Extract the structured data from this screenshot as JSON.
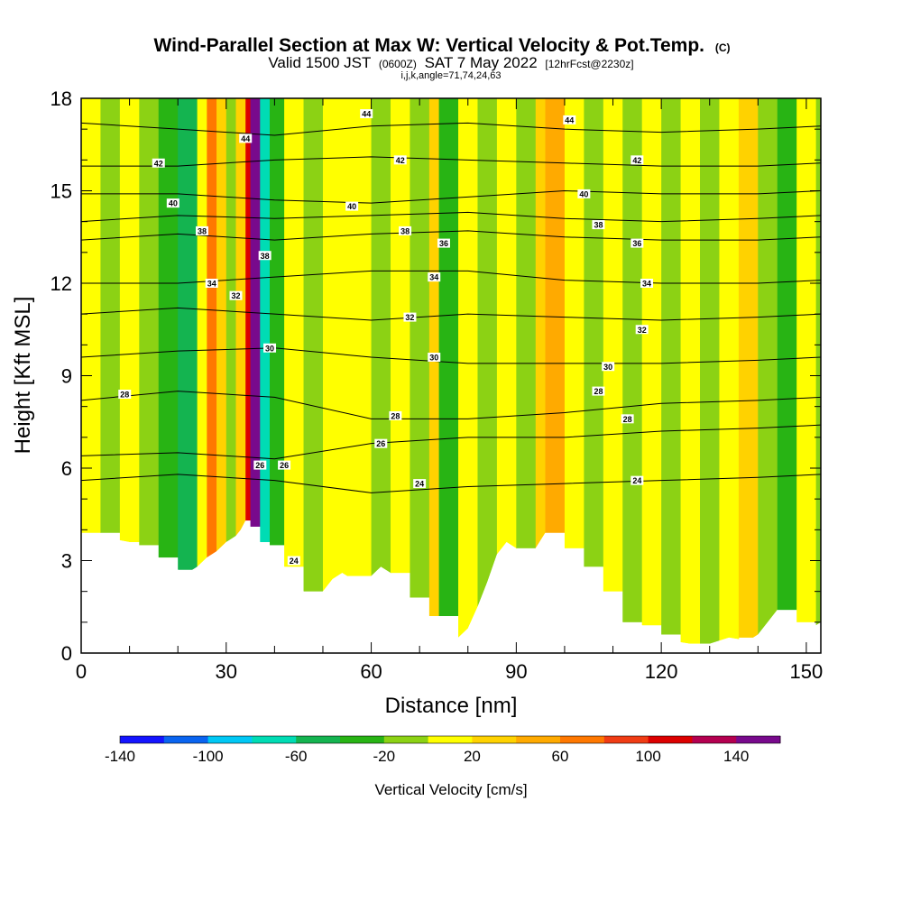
{
  "chart_data": {
    "type": "heatmap",
    "title": "Wind-Parallel Section at Max W: Vertical Velocity & Pot.Temp.",
    "title_mark": "(C)",
    "subtitle": {
      "valid_prefix": "Valid 1500 JST",
      "utc": "(0600Z)",
      "date": "SAT 7 May 2022",
      "forecast": "[12hrFcst@2230z]"
    },
    "info": "i,j,k,angle=71,74,24,63",
    "xlabel": "Distance [nm]",
    "ylabel": "Height [Kft MSL]",
    "xlim": [
      0,
      153
    ],
    "ylim": [
      0,
      18
    ],
    "x_ticks": [
      0,
      30,
      60,
      90,
      120,
      150
    ],
    "x_tick_labels": [
      "0",
      "30",
      "60",
      "90",
      "120",
      "150"
    ],
    "y_ticks": [
      0,
      3,
      6,
      9,
      12,
      15,
      18
    ],
    "y_tick_labels": [
      "0",
      "3",
      "6",
      "9",
      "12",
      "15",
      "18"
    ],
    "colorbar": {
      "label": "Vertical Velocity [cm/s]",
      "min": -140,
      "max": 160,
      "step": 20,
      "tick_values": [
        -140,
        -100,
        -60,
        -20,
        20,
        60,
        100,
        140
      ],
      "tick_labels": [
        "-140",
        "-100",
        "-60",
        "-20",
        "20",
        "60",
        "100",
        "140"
      ],
      "colors": [
        "#1414ff",
        "#0a64f0",
        "#00c8f5",
        "#00dcb4",
        "#14b450",
        "#28b414",
        "#8cd214",
        "#ffff00",
        "#ffd200",
        "#ffaa00",
        "#ff7800",
        "#f03c14",
        "#dc0000",
        "#b40050",
        "#780a8c"
      ]
    },
    "terrain_profile": {
      "x": [
        0,
        10,
        14,
        16,
        18,
        20,
        22,
        24,
        26,
        28,
        30,
        32,
        33,
        34,
        35,
        36,
        37,
        38,
        40,
        42,
        44,
        46,
        48,
        50,
        52,
        54,
        56,
        58,
        60,
        62,
        64,
        66,
        68,
        70,
        72,
        74,
        76,
        78,
        80,
        82,
        84,
        86,
        88,
        90,
        92,
        94,
        96,
        98,
        100,
        102,
        104,
        106,
        108,
        110,
        112,
        114,
        116,
        118,
        120,
        122,
        126,
        130,
        134,
        138,
        140,
        142,
        144,
        146,
        148,
        150,
        152,
        153
      ],
      "height": [
        3.9,
        3.6,
        3.3,
        3.1,
        2.9,
        2.7,
        2.6,
        2.8,
        3.1,
        3.3,
        3.6,
        3.8,
        4.0,
        4.3,
        4.1,
        3.8,
        3.6,
        3.5,
        3.2,
        2.8,
        2.4,
        2.0,
        1.8,
        2.0,
        2.4,
        2.6,
        2.4,
        2.2,
        2.5,
        2.8,
        2.6,
        2.2,
        1.8,
        1.4,
        1.2,
        1.2,
        1.0,
        0.5,
        0.8,
        1.5,
        2.3,
        3.2,
        3.6,
        3.4,
        3.0,
        3.4,
        3.9,
        3.7,
        3.4,
        3.1,
        2.8,
        2.5,
        2.0,
        1.5,
        1.0,
        0.9,
        0.9,
        0.8,
        0.6,
        0.4,
        0.3,
        0.3,
        0.5,
        0.4,
        0.6,
        1.0,
        1.4,
        1.2,
        1.0,
        0.8,
        0.9,
        1.0
      ]
    },
    "velocity_cells": [
      {
        "x": 0,
        "y0": 3.9,
        "y1": 18,
        "v": 10
      },
      {
        "x": 4,
        "y0": 3.9,
        "y1": 18,
        "v": -10
      },
      {
        "x": 8,
        "y0": 3.6,
        "y1": 18,
        "v": 10
      },
      {
        "x": 12,
        "y0": 3.5,
        "y1": 18,
        "v": -10
      },
      {
        "x": 16,
        "y0": 3.1,
        "y1": 18,
        "v": -30
      },
      {
        "x": 20,
        "y0": 2.7,
        "y1": 18,
        "v": -50
      },
      {
        "x": 24,
        "y0": 2.8,
        "y1": 18,
        "v": 10
      },
      {
        "x": 26,
        "y0": 3.1,
        "y1": 18,
        "v": 70
      },
      {
        "x": 28,
        "y0": 3.3,
        "y1": 18,
        "v": 30
      },
      {
        "x": 30,
        "y0": 3.6,
        "y1": 18,
        "v": -10
      },
      {
        "x": 32,
        "y0": 3.8,
        "y1": 18,
        "v": 30
      },
      {
        "x": 34,
        "y0": 4.3,
        "y1": 18,
        "v": 110
      },
      {
        "x": 35,
        "y0": 4.1,
        "y1": 18,
        "v": 150
      },
      {
        "x": 37,
        "y0": 3.6,
        "y1": 18,
        "v": -70
      },
      {
        "x": 39,
        "y0": 3.5,
        "y1": 18,
        "v": -30
      },
      {
        "x": 42,
        "y0": 2.8,
        "y1": 18,
        "v": 10
      },
      {
        "x": 46,
        "y0": 2.0,
        "y1": 18,
        "v": -10
      },
      {
        "x": 50,
        "y0": 2.0,
        "y1": 18,
        "v": 10
      },
      {
        "x": 55,
        "y0": 2.5,
        "y1": 18,
        "v": 10
      },
      {
        "x": 60,
        "y0": 2.5,
        "y1": 18,
        "v": -10
      },
      {
        "x": 64,
        "y0": 2.6,
        "y1": 18,
        "v": 10
      },
      {
        "x": 68,
        "y0": 1.8,
        "y1": 18,
        "v": -10
      },
      {
        "x": 72,
        "y0": 1.2,
        "y1": 18,
        "v": 30
      },
      {
        "x": 74,
        "y0": 1.2,
        "y1": 18,
        "v": -30
      },
      {
        "x": 78,
        "y0": 0.5,
        "y1": 18,
        "v": 10
      },
      {
        "x": 82,
        "y0": 1.5,
        "y1": 18,
        "v": -10
      },
      {
        "x": 86,
        "y0": 3.2,
        "y1": 18,
        "v": 10
      },
      {
        "x": 90,
        "y0": 3.4,
        "y1": 18,
        "v": -10
      },
      {
        "x": 94,
        "y0": 3.4,
        "y1": 18,
        "v": 30
      },
      {
        "x": 96,
        "y0": 3.9,
        "y1": 18,
        "v": 50
      },
      {
        "x": 100,
        "y0": 3.4,
        "y1": 18,
        "v": 10
      },
      {
        "x": 104,
        "y0": 2.8,
        "y1": 18,
        "v": -10
      },
      {
        "x": 108,
        "y0": 2.0,
        "y1": 18,
        "v": 10
      },
      {
        "x": 112,
        "y0": 1.0,
        "y1": 18,
        "v": -10
      },
      {
        "x": 116,
        "y0": 0.9,
        "y1": 18,
        "v": 10
      },
      {
        "x": 120,
        "y0": 0.6,
        "y1": 18,
        "v": -10
      },
      {
        "x": 124,
        "y0": 0.3,
        "y1": 18,
        "v": 10
      },
      {
        "x": 128,
        "y0": 0.3,
        "y1": 18,
        "v": -10
      },
      {
        "x": 132,
        "y0": 0.3,
        "y1": 18,
        "v": 10
      },
      {
        "x": 136,
        "y0": 0.5,
        "y1": 18,
        "v": 30
      },
      {
        "x": 140,
        "y0": 0.6,
        "y1": 18,
        "v": -10
      },
      {
        "x": 144,
        "y0": 1.4,
        "y1": 18,
        "v": -30
      },
      {
        "x": 148,
        "y0": 1.0,
        "y1": 18,
        "v": 10
      },
      {
        "x": 152,
        "y0": 0.9,
        "y1": 18,
        "v": -10
      }
    ],
    "theta_contours": [
      {
        "label": "24",
        "x": [
          0,
          20,
          40,
          60,
          80,
          100,
          120,
          140,
          153
        ],
        "y": [
          5.6,
          5.8,
          5.6,
          5.2,
          5.4,
          5.5,
          5.6,
          5.7,
          5.8
        ]
      },
      {
        "label": "26",
        "x": [
          0,
          20,
          40,
          60,
          80,
          100,
          120,
          140,
          153
        ],
        "y": [
          6.4,
          6.5,
          6.3,
          6.8,
          7.0,
          7.0,
          7.2,
          7.3,
          7.4
        ]
      },
      {
        "label": "28",
        "x": [
          0,
          20,
          40,
          60,
          80,
          100,
          120,
          140,
          153
        ],
        "y": [
          8.2,
          8.5,
          8.3,
          7.6,
          7.6,
          7.8,
          8.1,
          8.2,
          8.3
        ]
      },
      {
        "label": "30",
        "x": [
          0,
          20,
          40,
          60,
          80,
          100,
          120,
          140,
          153
        ],
        "y": [
          9.6,
          9.8,
          9.9,
          9.6,
          9.4,
          9.4,
          9.4,
          9.5,
          9.6
        ]
      },
      {
        "label": "32",
        "x": [
          0,
          20,
          40,
          60,
          80,
          100,
          120,
          140,
          153
        ],
        "y": [
          11.0,
          11.2,
          11.0,
          10.8,
          11.0,
          10.9,
          10.8,
          10.9,
          11.0
        ]
      },
      {
        "label": "34",
        "x": [
          0,
          20,
          40,
          60,
          80,
          100,
          120,
          140,
          153
        ],
        "y": [
          12.0,
          12.0,
          12.2,
          12.4,
          12.4,
          12.1,
          12.0,
          12.0,
          12.1
        ]
      },
      {
        "label": "36",
        "x": [
          0,
          20,
          40,
          60,
          80,
          100,
          120,
          140,
          153
        ],
        "y": [
          13.4,
          13.6,
          13.4,
          13.6,
          13.7,
          13.5,
          13.4,
          13.4,
          13.5
        ]
      },
      {
        "label": "38",
        "x": [
          0,
          20,
          40,
          60,
          80,
          100,
          120,
          140,
          153
        ],
        "y": [
          14.0,
          14.2,
          14.1,
          14.2,
          14.3,
          14.1,
          14.0,
          14.1,
          14.2
        ]
      },
      {
        "label": "40",
        "x": [
          0,
          20,
          40,
          60,
          80,
          100,
          120,
          140,
          153
        ],
        "y": [
          14.9,
          14.9,
          14.7,
          14.6,
          14.8,
          15.0,
          14.9,
          14.9,
          15.0
        ]
      },
      {
        "label": "42",
        "x": [
          0,
          20,
          40,
          60,
          80,
          100,
          120,
          140,
          153
        ],
        "y": [
          15.8,
          15.8,
          16.0,
          16.1,
          16.0,
          15.9,
          15.8,
          15.8,
          15.9
        ]
      },
      {
        "label": "44",
        "x": [
          0,
          20,
          40,
          60,
          80,
          100,
          120,
          140,
          153
        ],
        "y": [
          17.2,
          17.0,
          16.8,
          17.1,
          17.2,
          17.0,
          16.9,
          17.0,
          17.1
        ]
      }
    ],
    "contour_labels": [
      {
        "text": "44",
        "x": 34,
        "y": 16.7
      },
      {
        "text": "44",
        "x": 59,
        "y": 17.5
      },
      {
        "text": "44",
        "x": 101,
        "y": 17.3
      },
      {
        "text": "42",
        "x": 16,
        "y": 15.9
      },
      {
        "text": "42",
        "x": 66,
        "y": 16.0
      },
      {
        "text": "42",
        "x": 115,
        "y": 16.0
      },
      {
        "text": "40",
        "x": 19,
        "y": 14.6
      },
      {
        "text": "40",
        "x": 56,
        "y": 14.5
      },
      {
        "text": "40",
        "x": 104,
        "y": 14.9
      },
      {
        "text": "38",
        "x": 25,
        "y": 13.7
      },
      {
        "text": "38",
        "x": 38,
        "y": 12.9
      },
      {
        "text": "38",
        "x": 67,
        "y": 13.7
      },
      {
        "text": "38",
        "x": 107,
        "y": 13.9
      },
      {
        "text": "36",
        "x": 75,
        "y": 13.3
      },
      {
        "text": "36",
        "x": 115,
        "y": 13.3
      },
      {
        "text": "34",
        "x": 27,
        "y": 12.0
      },
      {
        "text": "34",
        "x": 73,
        "y": 12.2
      },
      {
        "text": "34",
        "x": 117,
        "y": 12.0
      },
      {
        "text": "32",
        "x": 32,
        "y": 11.6
      },
      {
        "text": "32",
        "x": 68,
        "y": 10.9
      },
      {
        "text": "32",
        "x": 116,
        "y": 10.5
      },
      {
        "text": "30",
        "x": 39,
        "y": 9.9
      },
      {
        "text": "30",
        "x": 73,
        "y": 9.6
      },
      {
        "text": "30",
        "x": 109,
        "y": 9.3
      },
      {
        "text": "28",
        "x": 9,
        "y": 8.4
      },
      {
        "text": "28",
        "x": 65,
        "y": 7.7
      },
      {
        "text": "28",
        "x": 107,
        "y": 8.5
      },
      {
        "text": "28",
        "x": 113,
        "y": 7.6
      },
      {
        "text": "26",
        "x": 37,
        "y": 6.1
      },
      {
        "text": "26",
        "x": 42,
        "y": 6.1
      },
      {
        "text": "26",
        "x": 62,
        "y": 6.8
      },
      {
        "text": "24",
        "x": 70,
        "y": 5.5
      },
      {
        "text": "24",
        "x": 115,
        "y": 5.6
      },
      {
        "text": "24",
        "x": 44,
        "y": 3.0
      }
    ]
  }
}
